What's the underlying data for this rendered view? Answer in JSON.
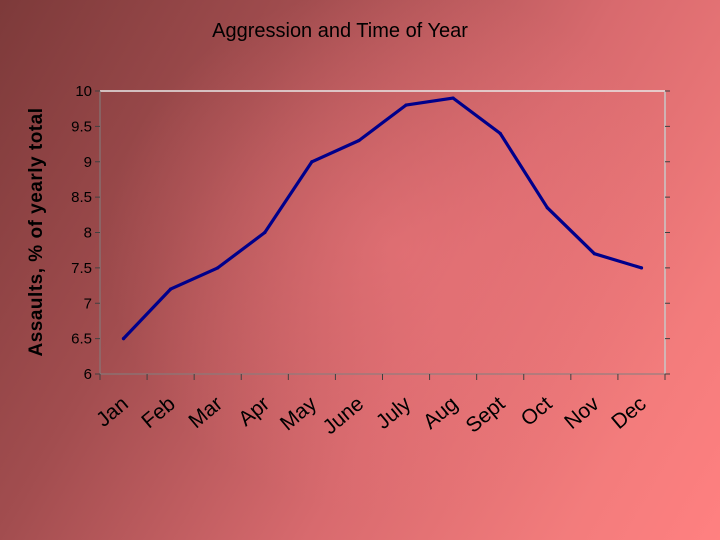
{
  "chart_data": {
    "type": "line",
    "title": "Aggression and Time of Year",
    "xlabel": "",
    "ylabel": "Assaults, % of yearly total",
    "categories": [
      "Jan",
      "Feb",
      "Mar",
      "Apr",
      "May",
      "June",
      "July",
      "Aug",
      "Sept",
      "Oct",
      "Nov",
      "Dec"
    ],
    "series": [
      {
        "values": [
          6.5,
          7.2,
          7.5,
          8.0,
          9.0,
          9.3,
          9.8,
          9.9,
          9.4,
          8.35,
          7.7,
          7.5
        ]
      }
    ],
    "ylim": [
      6,
      10
    ],
    "yticks": [
      "6",
      "6.5",
      "7",
      "7.5",
      "8",
      "8.5",
      "9",
      "9.5",
      "10"
    ],
    "grid": false,
    "line_color": "#00008b"
  }
}
